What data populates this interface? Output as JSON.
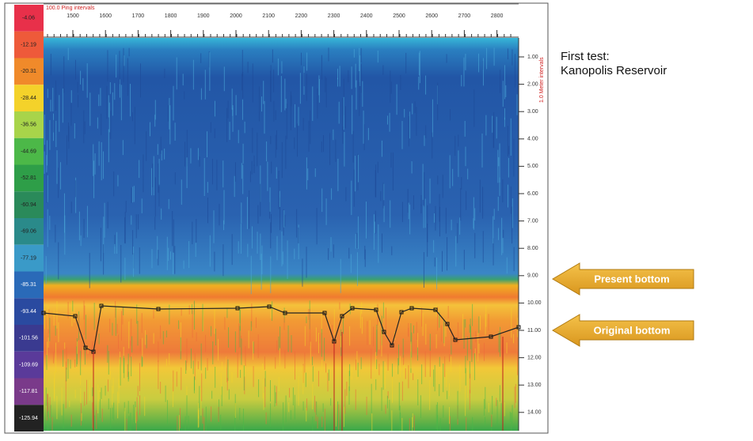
{
  "color_scale": {
    "labels": [
      "-4.06",
      "-12.19",
      "-20.31",
      "-28.44",
      "-36.56",
      "-44.69",
      "-52.81",
      "-60.94",
      "-69.06",
      "-77.19",
      "-85.31",
      "-93.44",
      "-101.56",
      "-109.69",
      "-117.81",
      "-125.94"
    ]
  },
  "top_axis": {
    "title": "100.0 Ping intervals",
    "labels": [
      "1500",
      "1600",
      "1700",
      "1800",
      "1900",
      "2000",
      "2100",
      "2200",
      "2300",
      "2400",
      "2500",
      "2600",
      "2700",
      "2800"
    ]
  },
  "right_axis": {
    "title": "1.0 Meter intervals",
    "labels": [
      "1.00",
      "2.00",
      "3.00",
      "4.00",
      "5.00",
      "6.00",
      "7.00",
      "8.00",
      "9.00",
      "10.00",
      "11.00",
      "12.00",
      "13.00",
      "14.00"
    ]
  },
  "caption": {
    "line1": "First test:",
    "line2": "Kanopolis Reservoir"
  },
  "arrows": {
    "present": "Present bottom",
    "original": "Original bottom"
  }
}
